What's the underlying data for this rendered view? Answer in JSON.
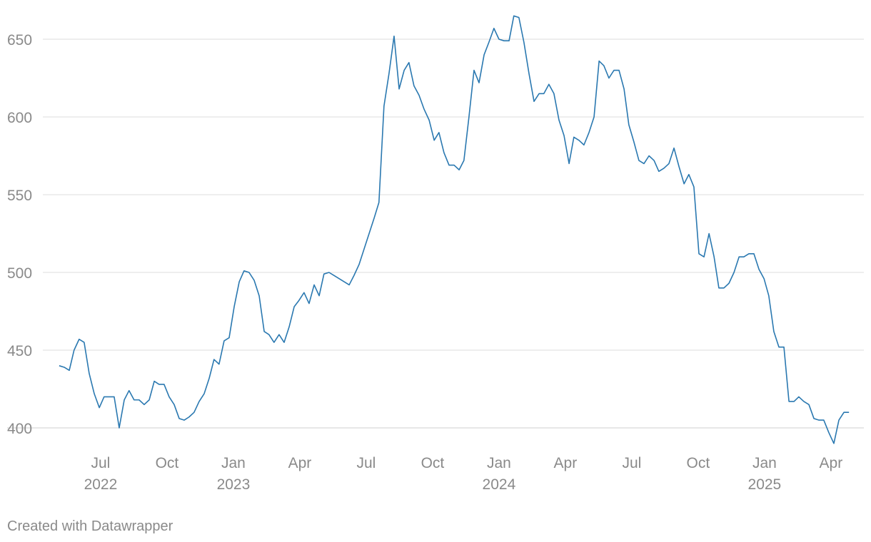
{
  "chart_data": {
    "type": "line",
    "x": [
      2022.344,
      2022.363,
      2022.382,
      2022.4,
      2022.419,
      2022.438,
      2022.457,
      2022.476,
      2022.495,
      2022.513,
      2022.532,
      2022.551,
      2022.57,
      2022.589,
      2022.607,
      2022.626,
      2022.645,
      2022.664,
      2022.683,
      2022.702,
      2022.72,
      2022.739,
      2022.758,
      2022.777,
      2022.796,
      2022.815,
      2022.833,
      2022.852,
      2022.871,
      2022.89,
      2022.909,
      2022.927,
      2022.946,
      2022.965,
      2022.984,
      2023.003,
      2023.022,
      2023.04,
      2023.059,
      2023.078,
      2023.097,
      2023.116,
      2023.134,
      2023.153,
      2023.172,
      2023.191,
      2023.21,
      2023.229,
      2023.247,
      2023.266,
      2023.285,
      2023.304,
      2023.323,
      2023.341,
      2023.36,
      2023.379,
      2023.398,
      2023.417,
      2023.436,
      2023.454,
      2023.473,
      2023.492,
      2023.511,
      2023.53,
      2023.548,
      2023.567,
      2023.586,
      2023.605,
      2023.624,
      2023.643,
      2023.661,
      2023.68,
      2023.699,
      2023.718,
      2023.737,
      2023.756,
      2023.774,
      2023.793,
      2023.812,
      2023.831,
      2023.85,
      2023.868,
      2023.887,
      2023.906,
      2023.925,
      2023.944,
      2023.962,
      2023.981,
      2024.0,
      2024.019,
      2024.038,
      2024.056,
      2024.075,
      2024.094,
      2024.113,
      2024.132,
      2024.151,
      2024.169,
      2024.188,
      2024.207,
      2024.226,
      2024.245,
      2024.264,
      2024.282,
      2024.301,
      2024.32,
      2024.339,
      2024.358,
      2024.377,
      2024.395,
      2024.414,
      2024.433,
      2024.452,
      2024.471,
      2024.489,
      2024.508,
      2024.527,
      2024.546,
      2024.565,
      2024.584,
      2024.602,
      2024.621,
      2024.64,
      2024.659,
      2024.678,
      2024.697,
      2024.715,
      2024.734,
      2024.753,
      2024.772,
      2024.791,
      2024.81,
      2024.828,
      2024.847,
      2024.866,
      2024.885,
      2024.904,
      2024.922,
      2024.941,
      2024.96,
      2024.979,
      2024.998,
      2025.016,
      2025.035,
      2025.054,
      2025.073,
      2025.092,
      2025.111,
      2025.129,
      2025.148,
      2025.167,
      2025.186,
      2025.205,
      2025.223,
      2025.242,
      2025.261,
      2025.28,
      2025.299,
      2025.318
    ],
    "values": [
      440,
      439,
      437,
      450,
      457,
      455,
      435,
      422,
      413,
      420,
      420,
      420,
      400,
      418,
      424,
      418,
      418,
      415,
      418,
      430,
      428,
      428,
      420,
      415,
      406,
      405,
      407,
      410,
      417,
      422,
      432,
      444,
      441,
      456,
      458,
      478,
      494,
      501,
      500,
      495,
      485,
      462,
      460,
      455,
      460,
      455,
      465,
      478,
      482,
      487,
      480,
      492,
      485,
      499,
      500,
      498,
      496,
      494,
      492,
      498,
      505,
      515,
      525,
      535,
      545,
      607,
      628,
      652,
      618,
      630,
      635,
      620,
      614,
      605,
      598,
      585,
      590,
      577,
      569,
      569,
      566,
      572,
      600,
      630,
      622,
      640,
      648,
      657,
      650,
      649,
      649,
      665,
      664,
      648,
      628,
      610,
      615,
      615,
      621,
      615,
      598,
      588,
      570,
      587,
      585,
      582,
      590,
      600,
      636,
      633,
      625,
      630,
      630,
      618,
      595,
      584,
      572,
      570,
      575,
      572,
      565,
      567,
      570,
      580,
      568,
      557,
      563,
      555,
      512,
      510,
      525,
      510,
      490,
      490,
      493,
      500,
      510,
      510,
      512,
      512,
      502,
      496,
      485,
      462,
      452,
      452,
      417,
      417,
      420,
      417,
      415,
      406,
      405,
      405,
      397,
      390,
      405,
      410,
      410
    ],
    "color": "#2a78b0",
    "xlim": [
      2022.148,
      2025.374
    ],
    "xticks": [
      {
        "value": 2022.5,
        "label": "Jul 2022"
      },
      {
        "value": 2022.75,
        "label": "Oct"
      },
      {
        "value": 2023.0,
        "label": "Jan 2023"
      },
      {
        "value": 2023.25,
        "label": "Apr"
      },
      {
        "value": 2023.5,
        "label": "Jul"
      },
      {
        "value": 2023.75,
        "label": "Oct"
      },
      {
        "value": 2024.0,
        "label": "Jan 2024"
      },
      {
        "value": 2024.25,
        "label": "Apr"
      },
      {
        "value": 2024.5,
        "label": "Jul"
      },
      {
        "value": 2024.75,
        "label": "Oct"
      },
      {
        "value": 2025.0,
        "label": "Jan 2025"
      },
      {
        "value": 2025.25,
        "label": "Apr"
      }
    ],
    "ylim": [
      380,
      670
    ],
    "yticks": [
      400,
      450,
      500,
      550,
      600,
      650
    ],
    "grid": true,
    "credit": "Created with Datawrapper"
  }
}
